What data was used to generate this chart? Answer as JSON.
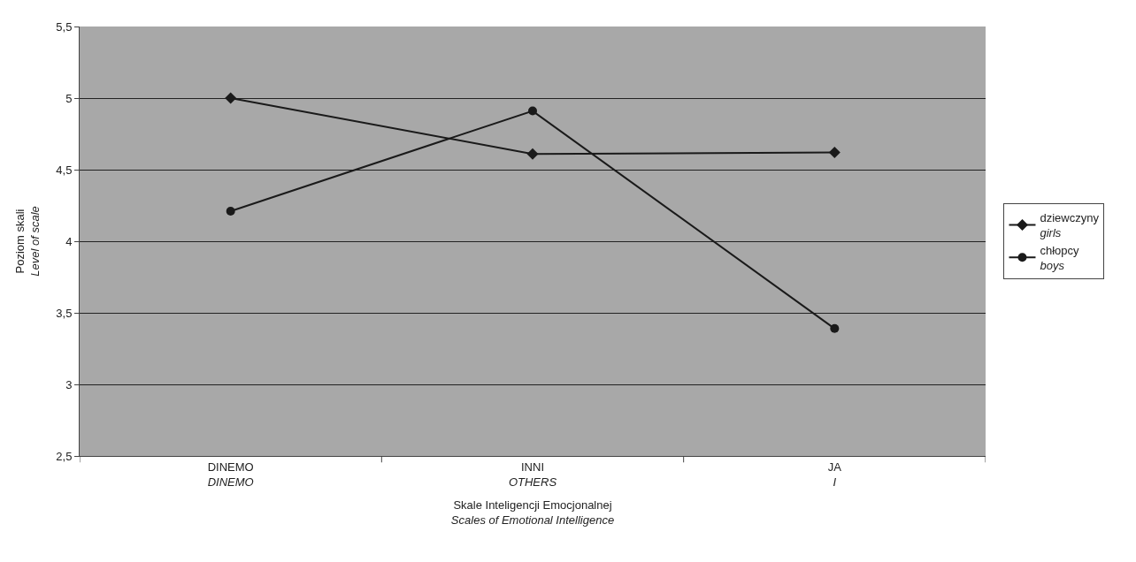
{
  "chart_data": {
    "type": "line",
    "xlabel": "Skale Inteligencji Emocjonalnej\nScales of Emotional Intelligence",
    "ylabel": "Poziom skali\nLevel of scale",
    "categories": [
      "DINEMO\nDINEMO",
      "INNI\nOTHERS",
      "JA\nI"
    ],
    "series": [
      {
        "name": "dziewczyny\ngirls",
        "color": "#1a1a1a",
        "marker": "diamond",
        "values": [
          5.0,
          4.61,
          4.62
        ]
      },
      {
        "name": "chłopcy\nboys",
        "color": "#1a1a1a",
        "marker": "circle",
        "values": [
          4.21,
          4.91,
          3.39
        ]
      }
    ],
    "ylim": [
      2.5,
      5.5
    ],
    "yticks": [
      {
        "value": 2.5,
        "label": "2,5"
      },
      3,
      {
        "value": 3.5,
        "label": "3,5"
      },
      4,
      {
        "value": 4.5,
        "label": "4,5"
      },
      5,
      {
        "value": 5.5,
        "label": "5,5"
      }
    ],
    "grid": "y",
    "legend": "right",
    "line_style": "solid"
  }
}
